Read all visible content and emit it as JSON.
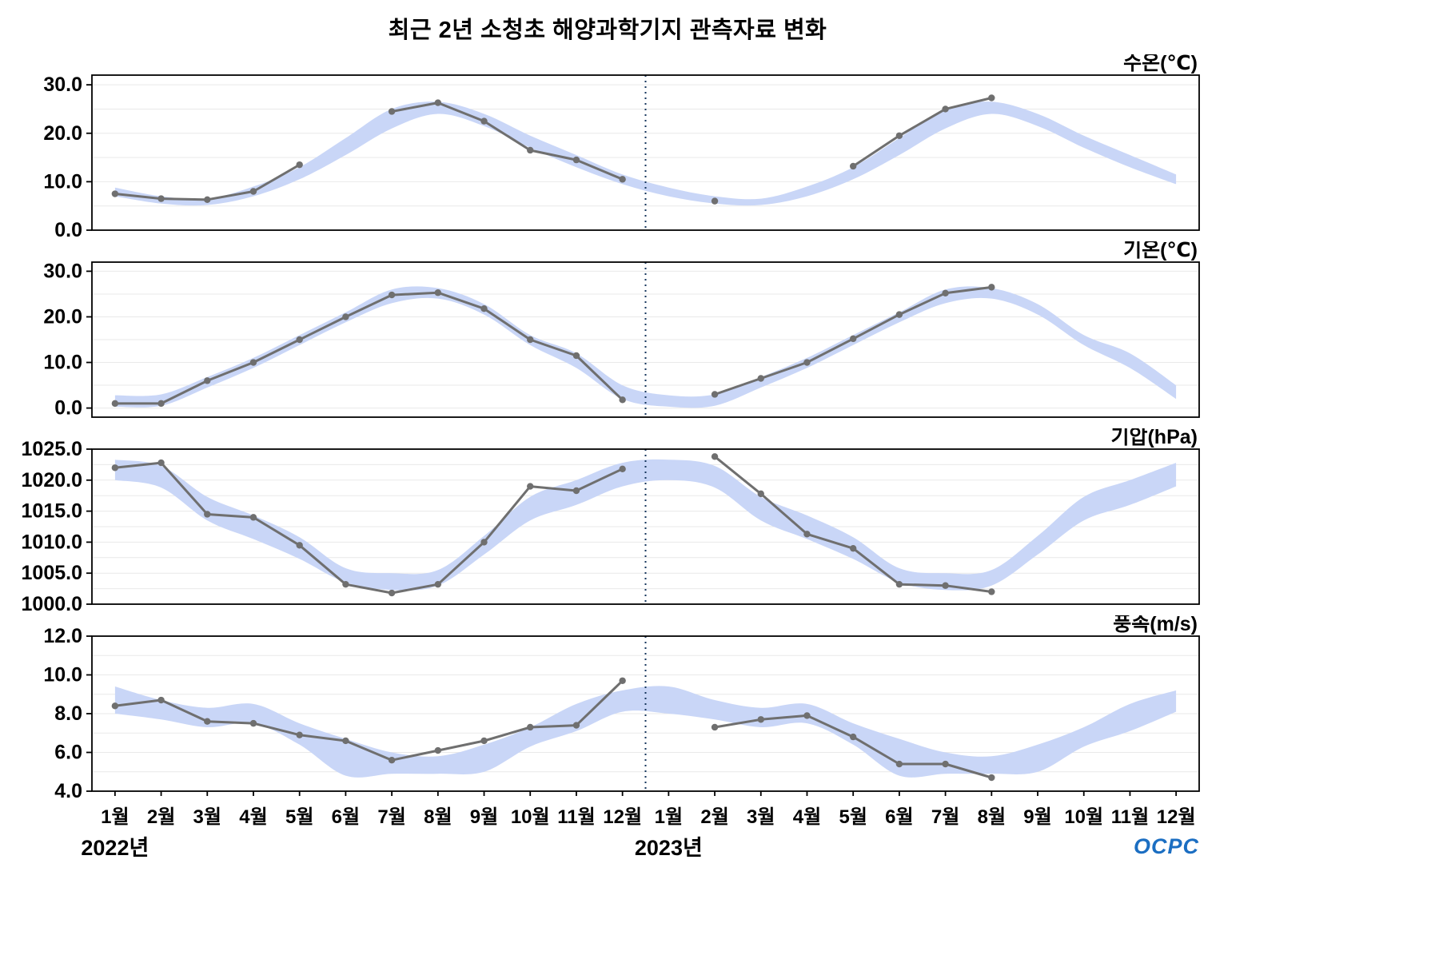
{
  "page": {
    "title": "최근 2년 소청초 해양과학기지 관측자료 변화",
    "logo_text": "OCPC"
  },
  "colors": {
    "band": "#c9d6f7",
    "line": "#6f6f6f",
    "divider": "#16365c",
    "grid": "#e9e9e9",
    "axis": "#000000"
  },
  "x_axis": {
    "months": [
      "1월",
      "2월",
      "3월",
      "4월",
      "5월",
      "6월",
      "7월",
      "8월",
      "9월",
      "10월",
      "11월",
      "12월",
      "1월",
      "2월",
      "3월",
      "4월",
      "5월",
      "6월",
      "7월",
      "8월",
      "9월",
      "10월",
      "11월",
      "12월"
    ],
    "years": [
      {
        "label": "2022년",
        "month_index": 0
      },
      {
        "label": "2023년",
        "month_index": 12
      }
    ],
    "divider_month_index": 12
  },
  "chart_data": [
    {
      "type": "line",
      "unit_label": "수온(℃)",
      "ylim": [
        0,
        32
      ],
      "yticks": [
        0,
        10,
        20,
        30
      ],
      "grid_step": 5,
      "line": [
        7.5,
        6.5,
        6.3,
        8.0,
        13.5,
        null,
        24.5,
        26.3,
        22.5,
        16.5,
        14.5,
        10.5,
        null,
        6.0,
        null,
        null,
        13.2,
        19.5,
        25.0,
        27.3,
        null,
        null,
        null,
        null
      ],
      "band_low": [
        7.0,
        5.5,
        5.2,
        7.0,
        10.5,
        15.5,
        21.0,
        24.0,
        21.5,
        17.0,
        13.0,
        9.5,
        7.0,
        5.5,
        5.2,
        7.0,
        10.5,
        15.5,
        21.0,
        24.0,
        21.5,
        17.0,
        13.0,
        9.5
      ],
      "band_high": [
        8.8,
        7.0,
        6.5,
        9.0,
        13.0,
        19.0,
        25.0,
        26.5,
        24.0,
        19.5,
        15.5,
        11.5,
        8.8,
        7.0,
        6.5,
        9.0,
        13.0,
        19.0,
        25.0,
        26.5,
        24.0,
        19.5,
        15.5,
        11.5
      ]
    },
    {
      "type": "line",
      "unit_label": "기온(℃)",
      "ylim": [
        -2,
        32
      ],
      "yticks": [
        0,
        10,
        20,
        30
      ],
      "grid_step": 5,
      "line": [
        1.0,
        1.0,
        6.0,
        10.0,
        15.0,
        20.0,
        24.8,
        25.3,
        21.8,
        15.0,
        11.5,
        1.8,
        null,
        3.0,
        6.5,
        10.0,
        15.2,
        20.5,
        25.2,
        26.5,
        null,
        null,
        null,
        null
      ],
      "band_low": [
        0.3,
        0.5,
        4.5,
        8.8,
        13.8,
        18.8,
        23.0,
        24.0,
        20.5,
        13.8,
        8.8,
        2.0,
        0.3,
        0.5,
        4.5,
        8.8,
        13.8,
        18.8,
        23.0,
        24.0,
        20.5,
        13.8,
        8.8,
        2.0
      ],
      "band_high": [
        2.8,
        3.0,
        6.8,
        11.0,
        16.0,
        21.0,
        26.0,
        26.3,
        22.8,
        16.0,
        12.0,
        5.0,
        2.8,
        3.0,
        6.8,
        11.0,
        16.0,
        21.0,
        26.0,
        26.3,
        22.8,
        16.0,
        12.0,
        5.0
      ]
    },
    {
      "type": "line",
      "unit_label": "기압(hPa)",
      "ylim": [
        1000,
        1025
      ],
      "yticks": [
        1000,
        1005,
        1010,
        1015,
        1020,
        1025
      ],
      "grid_step": 2.5,
      "line": [
        1022.0,
        1022.8,
        1014.5,
        1014.0,
        1009.5,
        1003.2,
        1001.8,
        1003.2,
        1010.0,
        1019.0,
        1018.3,
        1021.8,
        null,
        1023.8,
        1017.8,
        1011.3,
        1009.0,
        1003.2,
        1003.0,
        1002.0,
        null,
        null,
        null,
        null
      ],
      "band_low": [
        1020.0,
        1018.8,
        1013.5,
        1010.5,
        1007.3,
        1003.5,
        1002.3,
        1003.0,
        1008.0,
        1013.5,
        1016.0,
        1019.0,
        1020.0,
        1018.8,
        1013.5,
        1010.5,
        1007.3,
        1003.5,
        1002.3,
        1003.0,
        1008.0,
        1013.5,
        1016.0,
        1019.0
      ],
      "band_high": [
        1023.3,
        1022.3,
        1017.3,
        1014.3,
        1010.8,
        1005.8,
        1005.0,
        1005.5,
        1011.0,
        1017.3,
        1020.0,
        1022.8,
        1023.3,
        1022.3,
        1017.3,
        1014.3,
        1010.8,
        1005.8,
        1005.0,
        1005.5,
        1011.0,
        1017.3,
        1020.0,
        1022.8
      ]
    },
    {
      "type": "line",
      "unit_label": "풍속(m/s)",
      "ylim": [
        4,
        12
      ],
      "yticks": [
        4,
        6,
        8,
        10,
        12
      ],
      "grid_step": 1,
      "line": [
        8.4,
        8.7,
        7.6,
        7.5,
        6.9,
        6.6,
        5.6,
        6.1,
        6.6,
        7.3,
        7.4,
        9.7,
        null,
        7.3,
        7.7,
        7.9,
        6.8,
        5.4,
        5.4,
        4.7,
        null,
        null,
        null,
        null
      ],
      "band_low": [
        8.0,
        7.7,
        7.3,
        7.5,
        6.4,
        4.8,
        4.9,
        4.9,
        5.0,
        6.3,
        7.1,
        8.1,
        8.0,
        7.7,
        7.3,
        7.5,
        6.4,
        4.8,
        4.9,
        4.9,
        5.0,
        6.3,
        7.1,
        8.1
      ],
      "band_high": [
        9.4,
        8.7,
        8.3,
        8.5,
        7.5,
        6.7,
        6.0,
        5.8,
        6.4,
        7.3,
        8.5,
        9.2,
        9.4,
        8.7,
        8.3,
        8.5,
        7.5,
        6.7,
        6.0,
        5.8,
        6.4,
        7.3,
        8.5,
        9.2
      ]
    }
  ]
}
